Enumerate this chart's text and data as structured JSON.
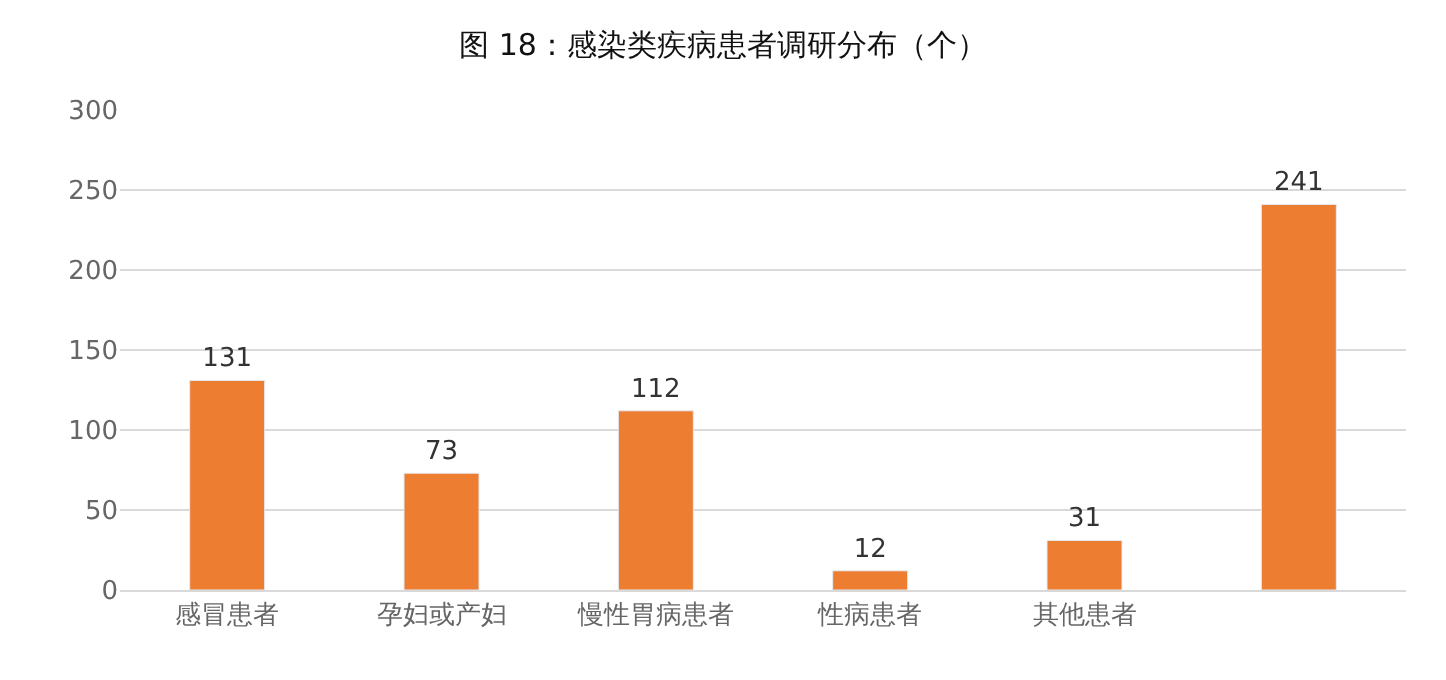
{
  "chart_data": {
    "type": "bar",
    "title": "图 18：感染类疾病患者调研分布（个）",
    "categories": [
      "感冒患者",
      "孕妇或产妇",
      "慢性胃病患者",
      "性病患者",
      "其他患者",
      null
    ],
    "values": [
      131,
      73,
      112,
      12,
      31,
      241
    ],
    "color": "#ed7d31",
    "ylim": [
      0,
      300
    ],
    "yticks": [
      0,
      50,
      100,
      150,
      200,
      250,
      300
    ],
    "grid": "y",
    "data_labels": true,
    "legend": false
  }
}
